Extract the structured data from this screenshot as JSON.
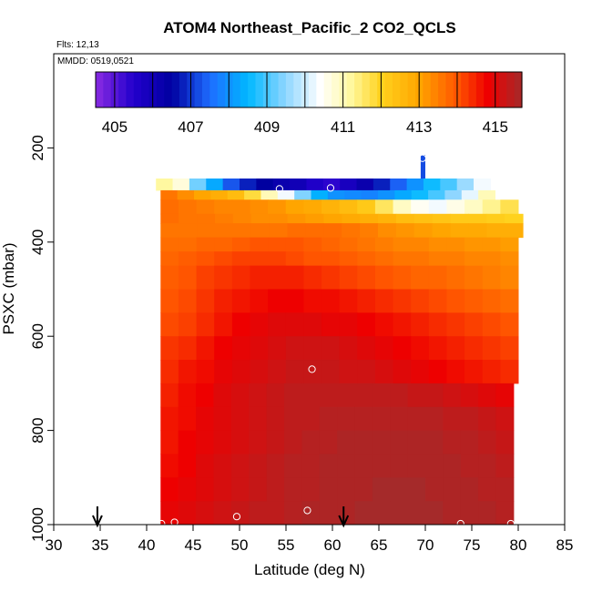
{
  "chart_data": {
    "type": "heatmap",
    "title": "ATOM4 Northeast_Pacific_2 CO2_QCLS",
    "flights_label": "Flts: 12,13",
    "date_label": "MMDD: 0519,0521",
    "xlabel": "Latitude (deg N)",
    "ylabel": "PSXC (mbar)",
    "xlim": [
      30,
      85
    ],
    "ylim": [
      1000,
      0
    ],
    "x_ticks": [
      "30",
      "35",
      "40",
      "45",
      "50",
      "55",
      "60",
      "65",
      "70",
      "75",
      "80",
      "85"
    ],
    "y_ticks": [
      "200",
      "400",
      "600",
      "800",
      "1000"
    ],
    "colorbar": {
      "range": [
        404.5,
        415.7
      ],
      "tick_labels": [
        "405",
        "407",
        "409",
        "411",
        "413",
        "415"
      ],
      "tick_values": [
        405,
        407,
        409,
        411,
        413,
        415
      ]
    },
    "stops": [
      {
        "v": 404.5,
        "c": "#8a2be2"
      },
      {
        "v": 405.5,
        "c": "#2200cc"
      },
      {
        "v": 406.5,
        "c": "#0000a0"
      },
      {
        "v": 407.5,
        "c": "#1e6cff"
      },
      {
        "v": 408.5,
        "c": "#00b8ff"
      },
      {
        "v": 409.5,
        "c": "#8fd6ff"
      },
      {
        "v": 410.4,
        "c": "#ffffff"
      },
      {
        "v": 411.2,
        "c": "#fff8a0"
      },
      {
        "v": 412.0,
        "c": "#ffd21e"
      },
      {
        "v": 413.0,
        "c": "#ffa500"
      },
      {
        "v": 414.0,
        "c": "#ff5500"
      },
      {
        "v": 414.8,
        "c": "#ee0000"
      },
      {
        "v": 415.7,
        "c": "#a52a2a"
      }
    ],
    "curtain_rows": [
      {
        "p": [
          265,
          290
        ],
        "lat": [
          41.0,
          77.0
        ],
        "v": [
          411.2,
          410.7,
          409.3,
          408.3,
          407.3,
          406.8,
          406.5,
          406.2,
          406.0,
          405.6,
          405.4,
          405.8,
          406.2,
          406.8,
          407.4,
          408.0,
          408.6,
          409.0,
          409.6,
          410.3
        ]
      },
      {
        "p": [
          290,
          310
        ],
        "lat": [
          41.5,
          77.5
        ],
        "v": [
          413.6,
          413.3,
          413.0,
          412.8,
          412.5,
          411.8,
          411.0,
          410.3,
          409.4,
          408.4,
          408.0,
          407.9,
          407.8,
          408.0,
          408.3,
          408.6,
          409.0,
          409.5,
          410.2,
          411.0
        ]
      },
      {
        "p": [
          310,
          340
        ],
        "lat": [
          41.5,
          80.0
        ],
        "v": [
          413.7,
          413.6,
          413.5,
          413.4,
          413.4,
          413.3,
          413.2,
          413.0,
          412.9,
          412.7,
          412.5,
          412.2,
          411.6,
          410.9,
          410.5,
          410.3,
          410.6,
          410.9,
          411.3,
          411.7
        ]
      },
      {
        "p": [
          340,
          360
        ],
        "lat": [
          41.5,
          80.5
        ],
        "v": [
          413.7,
          413.6,
          413.6,
          413.5,
          413.4,
          413.3,
          413.3,
          413.2,
          413.1,
          413.0,
          412.9,
          412.8,
          412.7,
          412.5,
          412.4,
          412.3,
          412.2,
          412.2,
          412.1,
          412.0
        ]
      },
      {
        "p": [
          360,
          390
        ],
        "lat": [
          41.5,
          80.5
        ],
        "v": [
          413.6,
          413.6,
          413.6,
          413.6,
          413.6,
          413.6,
          413.6,
          413.7,
          413.7,
          413.7,
          413.6,
          413.5,
          413.3,
          413.2,
          413.1,
          413.0,
          412.9,
          412.9,
          412.8,
          412.8
        ]
      },
      {
        "p": [
          390,
          420
        ],
        "lat": [
          41.5,
          80.0
        ],
        "v": [
          413.7,
          413.7,
          413.8,
          413.8,
          413.9,
          414.0,
          414.0,
          414.0,
          413.9,
          413.8,
          413.7,
          413.6,
          413.5,
          413.4,
          413.4,
          413.3,
          413.3,
          413.2,
          413.2,
          413.1
        ]
      },
      {
        "p": [
          420,
          450
        ],
        "lat": [
          41.5,
          80.0
        ],
        "v": [
          413.8,
          413.9,
          414.0,
          414.1,
          414.2,
          414.2,
          414.2,
          414.1,
          414.0,
          414.0,
          413.9,
          413.8,
          413.7,
          413.6,
          413.6,
          413.5,
          413.5,
          413.4,
          413.4,
          413.3
        ]
      },
      {
        "p": [
          450,
          500
        ],
        "lat": [
          41.5,
          80.0
        ],
        "v": [
          413.9,
          414.0,
          414.2,
          414.3,
          414.4,
          414.5,
          414.5,
          414.5,
          414.4,
          414.3,
          414.2,
          414.1,
          414.0,
          413.9,
          413.8,
          413.8,
          413.7,
          413.6,
          413.5,
          413.4
        ]
      },
      {
        "p": [
          500,
          550
        ],
        "lat": [
          41.5,
          80.0
        ],
        "v": [
          414.0,
          414.1,
          414.3,
          414.5,
          414.6,
          414.7,
          414.8,
          414.8,
          414.7,
          414.7,
          414.6,
          414.5,
          414.4,
          414.3,
          414.2,
          414.1,
          414.0,
          413.9,
          413.8,
          413.7
        ]
      },
      {
        "p": [
          550,
          600
        ],
        "lat": [
          41.5,
          80.0
        ],
        "v": [
          414.1,
          414.2,
          414.4,
          414.6,
          414.8,
          414.9,
          415.0,
          415.0,
          415.0,
          414.9,
          414.9,
          414.8,
          414.7,
          414.6,
          414.5,
          414.4,
          414.3,
          414.2,
          414.1,
          414.0
        ]
      },
      {
        "p": [
          600,
          650
        ],
        "lat": [
          41.5,
          80.0
        ],
        "v": [
          414.3,
          414.4,
          414.6,
          414.8,
          414.9,
          415.0,
          415.1,
          415.2,
          415.2,
          415.2,
          415.1,
          415.0,
          414.9,
          414.8,
          414.7,
          414.6,
          414.5,
          414.4,
          414.3,
          414.2
        ]
      },
      {
        "p": [
          650,
          700
        ],
        "lat": [
          41.5,
          80.0
        ],
        "v": [
          414.4,
          414.6,
          414.7,
          414.9,
          415.0,
          415.1,
          415.2,
          415.3,
          415.3,
          415.3,
          415.2,
          415.2,
          415.1,
          415.0,
          414.9,
          414.8,
          414.7,
          414.6,
          414.5,
          414.4
        ]
      },
      {
        "p": [
          700,
          750
        ],
        "lat": [
          41.5,
          79.5
        ],
        "v": [
          414.5,
          414.7,
          414.8,
          415.0,
          415.1,
          415.2,
          415.3,
          415.4,
          415.4,
          415.4,
          415.4,
          415.4,
          415.4,
          415.4,
          415.3,
          415.3,
          415.2,
          415.1,
          415.0,
          414.9
        ]
      },
      {
        "p": [
          750,
          800
        ],
        "lat": [
          41.5,
          79.5
        ],
        "v": [
          414.6,
          414.7,
          414.9,
          415.0,
          415.1,
          415.2,
          415.3,
          415.4,
          415.4,
          415.5,
          415.5,
          415.5,
          415.5,
          415.5,
          415.5,
          415.5,
          415.4,
          415.4,
          415.3,
          415.2
        ]
      },
      {
        "p": [
          800,
          850
        ],
        "lat": [
          41.5,
          79.5
        ],
        "v": [
          414.6,
          414.8,
          414.9,
          415.0,
          415.1,
          415.2,
          415.3,
          415.4,
          415.5,
          415.5,
          415.6,
          415.6,
          415.6,
          415.6,
          415.6,
          415.6,
          415.5,
          415.5,
          415.4,
          415.3
        ]
      },
      {
        "p": [
          850,
          900
        ],
        "lat": [
          41.5,
          79.5
        ],
        "v": [
          414.7,
          414.8,
          415.0,
          415.1,
          415.2,
          415.3,
          415.4,
          415.5,
          415.5,
          415.6,
          415.6,
          415.6,
          415.6,
          415.6,
          415.6,
          415.6,
          415.6,
          415.5,
          415.5,
          415.4
        ]
      },
      {
        "p": [
          900,
          950
        ],
        "lat": [
          41.5,
          79.5
        ],
        "v": [
          414.8,
          414.9,
          415.0,
          415.1,
          415.2,
          415.3,
          415.4,
          415.5,
          415.5,
          415.6,
          415.6,
          415.6,
          415.7,
          415.7,
          415.7,
          415.6,
          415.6,
          415.6,
          415.5,
          415.5
        ]
      },
      {
        "p": [
          950,
          1000
        ],
        "lat": [
          41.5,
          79.5
        ],
        "v": [
          414.9,
          415.0,
          415.1,
          415.2,
          415.3,
          415.4,
          415.4,
          415.5,
          415.6,
          415.6,
          415.6,
          415.7,
          415.7,
          415.7,
          415.7,
          415.7,
          415.6,
          415.6,
          415.6,
          415.5
        ]
      }
    ],
    "high_segment": {
      "lat": [
        69.5,
        70.0
      ],
      "p": [
        215,
        265
      ],
      "v": 407.2
    },
    "profile_circles": [
      {
        "lat": 69.7,
        "p": 222
      },
      {
        "lat": 54.3,
        "p": 287
      },
      {
        "lat": 59.8,
        "p": 285
      },
      {
        "lat": 57.8,
        "p": 670
      },
      {
        "lat": 57.3,
        "p": 970
      },
      {
        "lat": 49.7,
        "p": 983
      },
      {
        "lat": 43.0,
        "p": 995
      },
      {
        "lat": 41.6,
        "p": 998
      },
      {
        "lat": 73.8,
        "p": 998
      },
      {
        "lat": 79.2,
        "p": 998
      }
    ],
    "arrows": [
      {
        "lat": 34.7
      },
      {
        "lat": 61.2
      }
    ]
  }
}
